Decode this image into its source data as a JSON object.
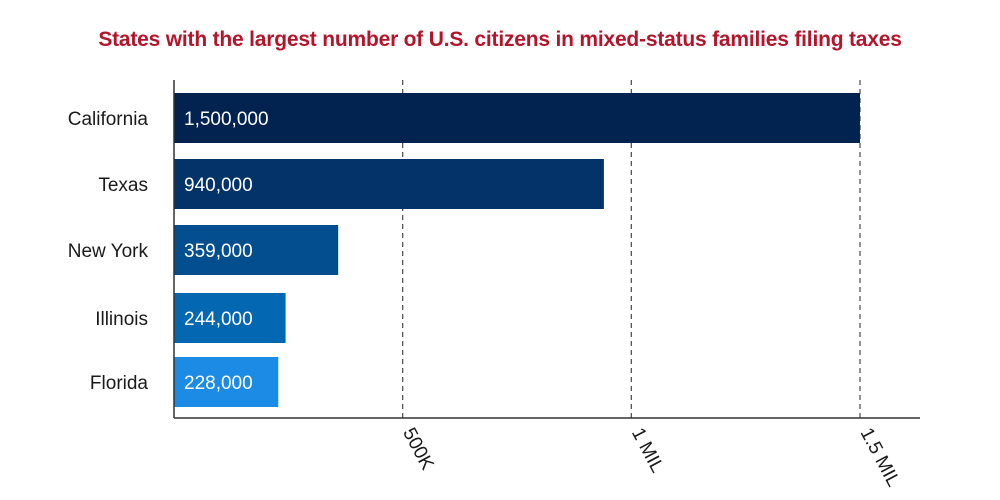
{
  "colors": {
    "title": "#b3152b",
    "axis": "#333333",
    "grid": "#555555",
    "bars": [
      "#02224f",
      "#033369",
      "#024e8f",
      "#0467b2",
      "#1b8be6"
    ]
  },
  "chart_data": {
    "type": "bar",
    "orientation": "horizontal",
    "title": "States with the largest number of U.S. citizens in mixed-status families filing taxes",
    "categories": [
      "California",
      "Texas",
      "New York",
      "Illinois",
      "Florida"
    ],
    "values": [
      1500000,
      940000,
      359000,
      244000,
      228000
    ],
    "value_labels": [
      "1,500,000",
      "940,000",
      "359,000",
      "244,000",
      "228,000"
    ],
    "xlim": [
      0,
      1630000
    ],
    "ticks": [
      {
        "value": 500000,
        "label": "500K"
      },
      {
        "value": 1000000,
        "label": "1 MIL"
      },
      {
        "value": 1500000,
        "label": "1.5 MIL"
      }
    ],
    "grid": "dashed vertical",
    "xlabel": "",
    "ylabel": ""
  }
}
